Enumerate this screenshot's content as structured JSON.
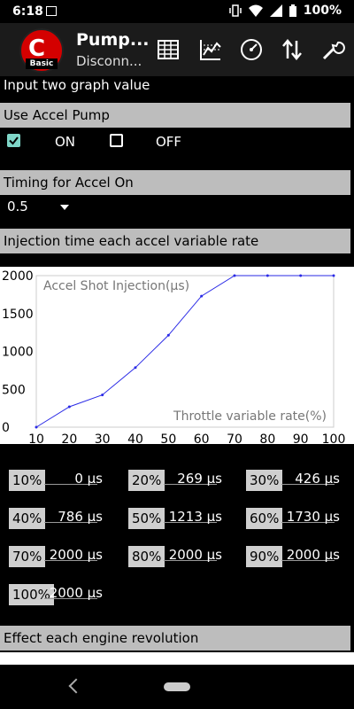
{
  "status_bar": {
    "time": "6:18",
    "battery": "100%"
  },
  "app_bar": {
    "title": "Pump...",
    "subtitle": "Disconn...",
    "logo_text": "Basic",
    "tools": [
      "table-icon",
      "chart-icon",
      "gauge-icon",
      "transfer-icon",
      "wrench-icon"
    ]
  },
  "header_text": "Input two graph value",
  "accel_pump": {
    "section_label": "Use Accel Pump",
    "on_label": "ON",
    "off_label": "OFF",
    "on_checked": true,
    "off_checked": false
  },
  "timing": {
    "section_label": "Timing for Accel On",
    "selected": "0.5"
  },
  "injection_section_label": "Injection time each accel variable rate",
  "chart_data": {
    "type": "line",
    "title": "Accel Shot Injection(μs)",
    "xlabel": "Throttle variable rate(%)",
    "x": [
      10,
      20,
      30,
      40,
      50,
      60,
      70,
      80,
      90,
      100
    ],
    "y": [
      0,
      269,
      426,
      786,
      1213,
      1730,
      2000,
      2000,
      2000,
      2000
    ],
    "xlim": [
      10,
      100
    ],
    "ylim": [
      0,
      2000
    ],
    "yticks": [
      "0",
      "500",
      "1000",
      "1500",
      "2000"
    ],
    "xticks": [
      "10",
      "20",
      "30",
      "40",
      "50",
      "60",
      "70",
      "80",
      "90",
      "100"
    ],
    "grid": false,
    "line_color": "#2a2ae6"
  },
  "rates": [
    {
      "label": "10%",
      "value": "0 μs"
    },
    {
      "label": "20%",
      "value": "269 μs"
    },
    {
      "label": "30%",
      "value": "426 μs"
    },
    {
      "label": "40%",
      "value": "786 μs"
    },
    {
      "label": "50%",
      "value": "1213 μs"
    },
    {
      "label": "60%",
      "value": "1730 μs"
    },
    {
      "label": "70%",
      "value": "2000 μs"
    },
    {
      "label": "80%",
      "value": "2000 μs"
    },
    {
      "label": "90%",
      "value": "2000 μs"
    },
    {
      "label": "100%",
      "value": "2000 μs"
    }
  ],
  "effect_section_label": "Effect each engine revolution",
  "colors": {
    "section_bg": "#bdbdbd",
    "check_accent": "#7fd6c8",
    "app_bar_bg": "#1b1b1b"
  }
}
